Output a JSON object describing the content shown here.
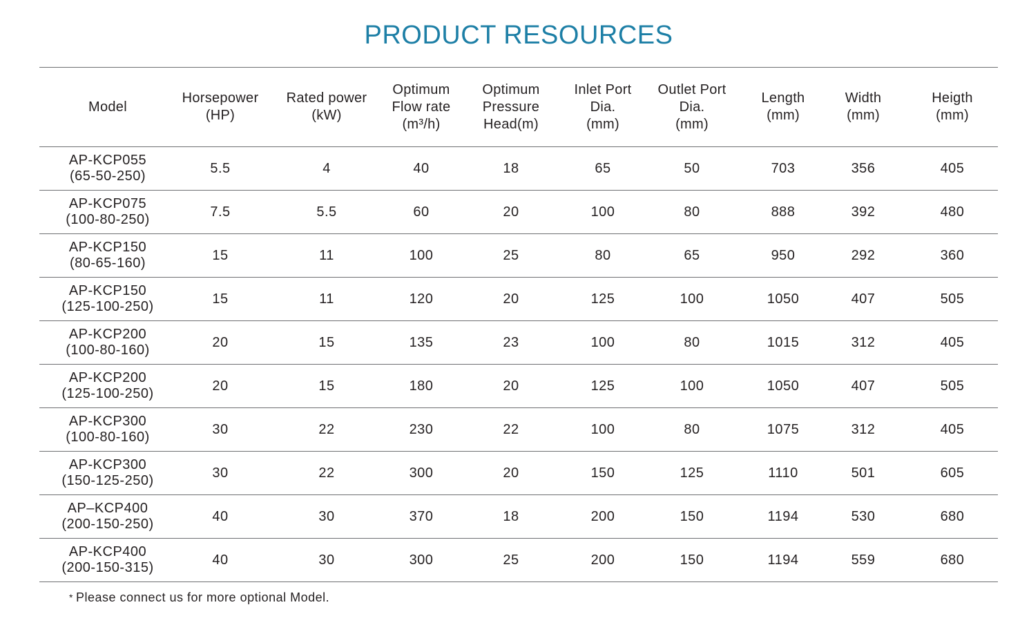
{
  "title": "PRODUCT RESOURCES",
  "headers": [
    [
      "Model"
    ],
    [
      "Horsepower",
      "(HP)"
    ],
    [
      "Rated power",
      "(kW)"
    ],
    [
      "Optimum",
      "Flow rate",
      "(m³/h)"
    ],
    [
      "Optimum",
      "Pressure",
      "Head(m)"
    ],
    [
      "Inlet Port",
      "Dia.",
      "(mm)"
    ],
    [
      "Outlet Port",
      "Dia.",
      "(mm)"
    ],
    [
      "Length",
      "(mm)"
    ],
    [
      "Width",
      "(mm)"
    ],
    [
      "Heigth",
      "(mm)"
    ]
  ],
  "rows": [
    {
      "model": "AP-KCP055",
      "size": "(65-50-250)",
      "hp": "5.5",
      "kw": "4",
      "flow": "40",
      "head": "18",
      "inlet": "65",
      "outlet": "50",
      "length": "703",
      "width": "356",
      "height": "405"
    },
    {
      "model": "AP-KCP075",
      "size": "(100-80-250)",
      "hp": "7.5",
      "kw": "5.5",
      "flow": "60",
      "head": "20",
      "inlet": "100",
      "outlet": "80",
      "length": "888",
      "width": "392",
      "height": "480"
    },
    {
      "model": "AP-KCP150",
      "size": "(80-65-160)",
      "hp": "15",
      "kw": "11",
      "flow": "100",
      "head": "25",
      "inlet": "80",
      "outlet": "65",
      "length": "950",
      "width": "292",
      "height": "360"
    },
    {
      "model": "AP-KCP150",
      "size": "(125-100-250)",
      "hp": "15",
      "kw": "11",
      "flow": "120",
      "head": "20",
      "inlet": "125",
      "outlet": "100",
      "length": "1050",
      "width": "407",
      "height": "505"
    },
    {
      "model": "AP-KCP200",
      "size": "(100-80-160)",
      "hp": "20",
      "kw": "15",
      "flow": "135",
      "head": "23",
      "inlet": "100",
      "outlet": "80",
      "length": "1015",
      "width": "312",
      "height": "405"
    },
    {
      "model": "AP-KCP200",
      "size": "(125-100-250)",
      "hp": "20",
      "kw": "15",
      "flow": "180",
      "head": "20",
      "inlet": "125",
      "outlet": "100",
      "length": "1050",
      "width": "407",
      "height": "505"
    },
    {
      "model": "AP-KCP300",
      "size": "(100-80-160)",
      "hp": "30",
      "kw": "22",
      "flow": "230",
      "head": "22",
      "inlet": "100",
      "outlet": "80",
      "length": "1075",
      "width": "312",
      "height": "405"
    },
    {
      "model": "AP-KCP300",
      "size": "(150-125-250)",
      "hp": "30",
      "kw": "22",
      "flow": "300",
      "head": "20",
      "inlet": "150",
      "outlet": "125",
      "length": "1110",
      "width": "501",
      "height": "605"
    },
    {
      "model": "AP–KCP400",
      "size": "(200-150-250)",
      "hp": "40",
      "kw": "30",
      "flow": "370",
      "head": "18",
      "inlet": "200",
      "outlet": "150",
      "length": "1194",
      "width": "530",
      "height": "680"
    },
    {
      "model": "AP-KCP400",
      "size": "(200-150-315)",
      "hp": "40",
      "kw": "30",
      "flow": "300",
      "head": "25",
      "inlet": "200",
      "outlet": "150",
      "length": "1194",
      "width": "559",
      "height": "680"
    }
  ],
  "note": {
    "marker": "*",
    "text": "Please connect us for more optional Model."
  }
}
